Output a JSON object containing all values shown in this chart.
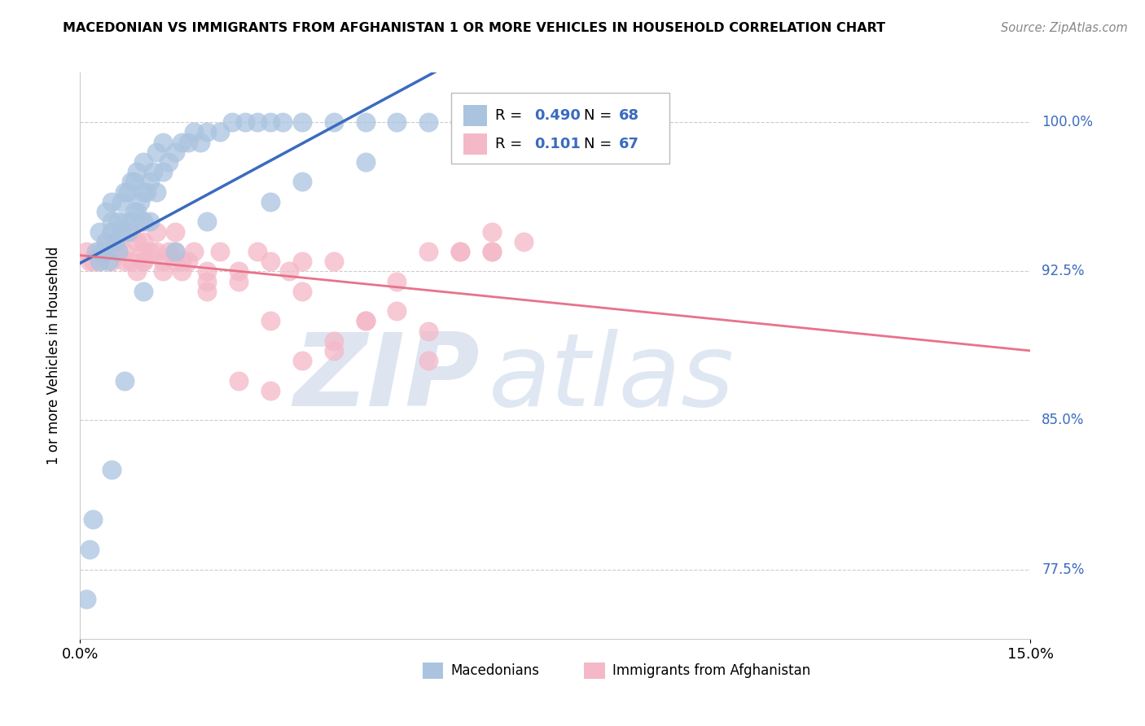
{
  "title": "MACEDONIAN VS IMMIGRANTS FROM AFGHANISTAN 1 OR MORE VEHICLES IN HOUSEHOLD CORRELATION CHART",
  "source": "Source: ZipAtlas.com",
  "ylabel": "1 or more Vehicles in Household",
  "xlim": [
    0.0,
    15.0
  ],
  "ylim": [
    74.0,
    102.5
  ],
  "yticks": [
    77.5,
    85.0,
    92.5,
    100.0
  ],
  "ytick_labels": [
    "77.5%",
    "85.0%",
    "92.5%",
    "100.0%"
  ],
  "xticks": [
    0.0,
    15.0
  ],
  "xtick_labels": [
    "0.0%",
    "15.0%"
  ],
  "blue_R": 0.49,
  "blue_N": 68,
  "pink_R": 0.101,
  "pink_N": 67,
  "blue_color": "#aac4e0",
  "pink_color": "#f4b8c8",
  "blue_line_color": "#3a6bbf",
  "pink_line_color": "#e8728a",
  "legend_blue_label": "Macedonians",
  "legend_pink_label": "Immigrants from Afghanistan",
  "watermark_zip": "ZIP",
  "watermark_atlas": "atlas",
  "blue_x": [
    0.1,
    0.15,
    0.2,
    0.25,
    0.3,
    0.3,
    0.35,
    0.4,
    0.4,
    0.45,
    0.5,
    0.5,
    0.5,
    0.55,
    0.6,
    0.6,
    0.65,
    0.65,
    0.7,
    0.7,
    0.75,
    0.75,
    0.8,
    0.8,
    0.85,
    0.85,
    0.9,
    0.9,
    0.95,
    1.0,
    1.0,
    1.0,
    1.05,
    1.1,
    1.1,
    1.15,
    1.2,
    1.2,
    1.3,
    1.3,
    1.4,
    1.5,
    1.6,
    1.7,
    1.8,
    1.9,
    2.0,
    2.2,
    2.4,
    2.6,
    2.8,
    3.0,
    3.2,
    3.5,
    4.0,
    4.5,
    5.0,
    5.5,
    6.0,
    0.5,
    0.7,
    1.0,
    1.5,
    2.0,
    3.0,
    3.5,
    4.5,
    6.5
  ],
  "blue_y": [
    76.0,
    78.5,
    80.0,
    93.5,
    93.0,
    94.5,
    93.5,
    94.0,
    95.5,
    93.0,
    94.5,
    95.0,
    96.0,
    94.0,
    93.5,
    95.0,
    94.5,
    96.0,
    95.0,
    96.5,
    94.5,
    96.5,
    95.0,
    97.0,
    95.5,
    97.0,
    95.5,
    97.5,
    96.0,
    95.0,
    96.5,
    98.0,
    96.5,
    95.0,
    97.0,
    97.5,
    96.5,
    98.5,
    97.5,
    99.0,
    98.0,
    98.5,
    99.0,
    99.0,
    99.5,
    99.0,
    99.5,
    99.5,
    100.0,
    100.0,
    100.0,
    100.0,
    100.0,
    100.0,
    100.0,
    100.0,
    100.0,
    100.0,
    100.0,
    82.5,
    87.0,
    91.5,
    93.5,
    95.0,
    96.0,
    97.0,
    98.0,
    99.0
  ],
  "pink_x": [
    0.1,
    0.15,
    0.2,
    0.3,
    0.4,
    0.5,
    0.5,
    0.6,
    0.6,
    0.7,
    0.8,
    0.8,
    0.9,
    0.9,
    1.0,
    1.0,
    1.0,
    1.1,
    1.2,
    1.2,
    1.3,
    1.4,
    1.5,
    1.5,
    1.6,
    1.7,
    1.8,
    2.0,
    2.2,
    2.5,
    2.8,
    3.0,
    3.3,
    3.5,
    4.0,
    4.5,
    5.0,
    5.5,
    6.0,
    6.5,
    7.0,
    0.4,
    0.7,
    1.0,
    1.3,
    1.6,
    2.0,
    2.5,
    3.0,
    3.5,
    4.0,
    4.5,
    5.5,
    6.5,
    2.0,
    3.0,
    4.0,
    5.0,
    6.0,
    0.3,
    0.6,
    1.0,
    1.5,
    2.5,
    3.5,
    5.5,
    6.5
  ],
  "pink_y": [
    93.5,
    93.0,
    93.0,
    93.5,
    94.0,
    93.0,
    94.5,
    93.5,
    94.0,
    93.5,
    93.0,
    94.5,
    92.5,
    94.0,
    93.0,
    94.0,
    95.0,
    93.5,
    93.5,
    94.5,
    93.0,
    93.5,
    93.0,
    94.5,
    92.5,
    93.0,
    93.5,
    92.0,
    93.5,
    92.0,
    93.5,
    93.0,
    92.5,
    91.5,
    93.0,
    90.0,
    90.5,
    88.0,
    93.5,
    93.5,
    94.0,
    93.5,
    93.0,
    93.5,
    92.5,
    93.0,
    92.5,
    87.0,
    86.5,
    88.0,
    89.0,
    90.0,
    89.5,
    93.5,
    91.5,
    90.0,
    88.5,
    92.0,
    93.5,
    93.0,
    93.5,
    93.0,
    93.5,
    92.5,
    93.0,
    93.5,
    94.5
  ]
}
